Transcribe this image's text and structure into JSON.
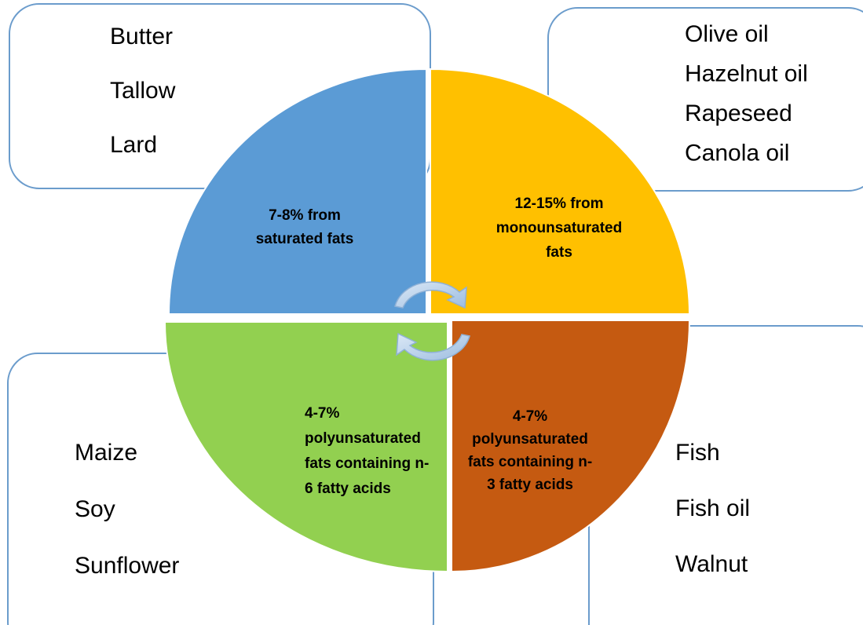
{
  "quadrants": [
    {
      "label_lines": [
        "7-8% from",
        "saturated fats"
      ],
      "items": [
        "Butter",
        "Tallow",
        "Lard"
      ]
    },
    {
      "label_lines": [
        "12-15% from",
        "monounsaturated",
        "fats"
      ],
      "items": [
        "Olive oil",
        "Hazelnut oil",
        "Rapeseed",
        "Canola oil"
      ]
    },
    {
      "label_lines": [
        "4-7%",
        "polyunsaturated",
        "fats containing n-",
        "6 fatty acids"
      ],
      "items": [
        "Maize",
        "Soy",
        "Sunflower"
      ]
    },
    {
      "label_lines": [
        "4-7%",
        "polyunsaturated",
        "fats containing n-",
        "3 fatty acids"
      ],
      "items": [
        "Fish",
        "Fish oil",
        "Walnut"
      ]
    }
  ]
}
